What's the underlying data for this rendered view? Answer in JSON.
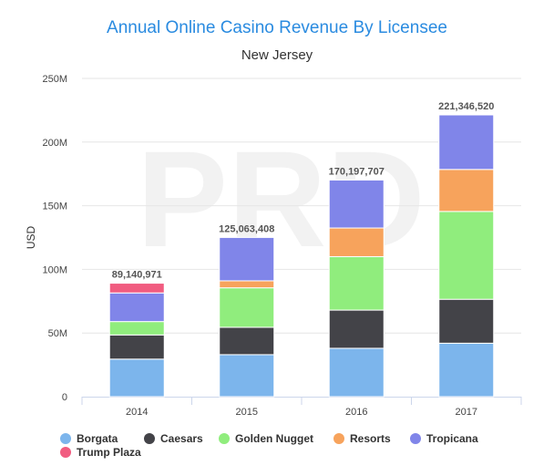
{
  "chart_data": {
    "type": "bar",
    "stacked": true,
    "title": "Annual Online Casino Revenue By Licensee",
    "subtitle": "New Jersey",
    "ylabel": "USD",
    "xlabel": "",
    "ylim": [
      0,
      250000000
    ],
    "y_ticks": [
      {
        "value": 0,
        "label": "0"
      },
      {
        "value": 50000000,
        "label": "50M"
      },
      {
        "value": 100000000,
        "label": "100M"
      },
      {
        "value": 150000000,
        "label": "150M"
      },
      {
        "value": 200000000,
        "label": "200M"
      },
      {
        "value": 250000000,
        "label": "250M"
      }
    ],
    "grid": true,
    "legend_position": "bottom-left",
    "categories": [
      "2014",
      "2015",
      "2016",
      "2017"
    ],
    "totals": [
      "89,140,971",
      "125,063,408",
      "170,197,707",
      "221,346,520"
    ],
    "total_values": [
      89140971,
      125063408,
      170197707,
      221346520
    ],
    "series": [
      {
        "name": "Borgata",
        "color": "#7cb5ec",
        "values": [
          29500000,
          33000000,
          38000000,
          42000000
        ]
      },
      {
        "name": "Caesars",
        "color": "#434348",
        "values": [
          19000000,
          21500000,
          30000000,
          34500000
        ]
      },
      {
        "name": "Golden Nugget",
        "color": "#90ed7d",
        "values": [
          10500000,
          31000000,
          42000000,
          69000000
        ]
      },
      {
        "name": "Resorts",
        "color": "#f7a35c",
        "values": [
          0,
          5500000,
          22500000,
          33000000
        ]
      },
      {
        "name": "Tropicana",
        "color": "#8085e9",
        "values": [
          22500000,
          34063408,
          37697707,
          42846520
        ]
      },
      {
        "name": "Trump Plaza",
        "color": "#f15c80",
        "values": [
          7640971,
          0,
          0,
          0
        ]
      }
    ]
  },
  "watermark": "PRD"
}
